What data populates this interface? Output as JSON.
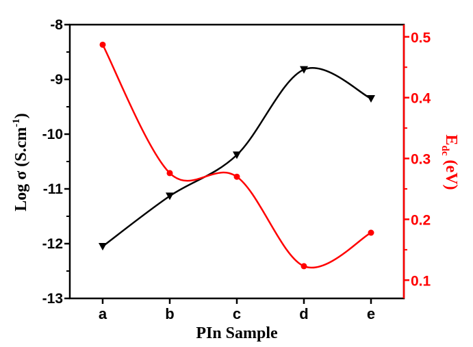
{
  "chart_data": {
    "type": "line",
    "categories": [
      "a",
      "b",
      "c",
      "d",
      "e"
    ],
    "xlabel": "PIn Sample",
    "ylabel_left": {
      "main": "Log σ (S.cm",
      "sup": "-1",
      "tail": ")"
    },
    "ylabel_right": {
      "main": "E",
      "sub": "dc",
      "tail": " (eV)"
    },
    "ylim_left": [
      -13,
      -8
    ],
    "ylim_right": [
      0.07,
      0.52
    ],
    "yticks_left": [
      -13,
      -12,
      -11,
      -10,
      -9,
      -8
    ],
    "yticks_right": [
      0.1,
      0.2,
      0.3,
      0.4,
      0.5
    ],
    "series": [
      {
        "axis": "left",
        "color": "#000000",
        "marker": "triangle-down",
        "values": [
          -12.05,
          -11.13,
          -10.38,
          -8.82,
          -9.35
        ]
      },
      {
        "axis": "right",
        "color": "#ff0000",
        "marker": "circle",
        "values": [
          0.487,
          0.276,
          0.27,
          0.123,
          0.178
        ]
      }
    ],
    "grid": false,
    "legend": "none"
  }
}
